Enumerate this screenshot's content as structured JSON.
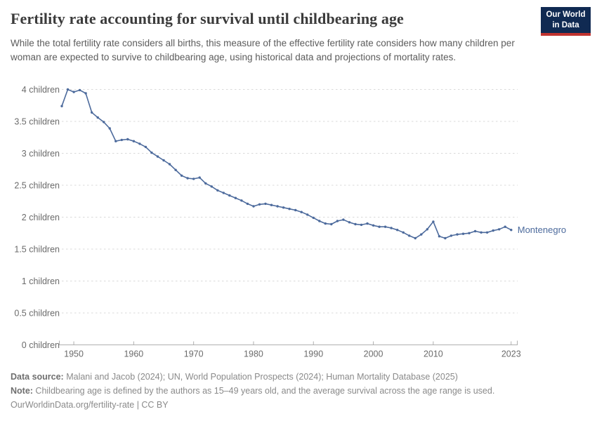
{
  "header": {
    "title": "Fertility rate accounting for survival until childbearing age",
    "subtitle": "While the total fertility rate considers all births, this measure of the effective fertility rate considers how many children per woman are expected to survive to childbearing age, using historical data and projections of mortality rates.",
    "logo": {
      "line1": "Our World",
      "line2": "in Data"
    }
  },
  "chart_data": {
    "type": "line",
    "title": "Fertility rate accounting for survival until childbearing age",
    "entity_label": "Montenegro",
    "grid": "horizontal-dashed",
    "legend_position": "end-of-line",
    "xlim": [
      1948,
      2024
    ],
    "ylim": [
      0,
      4
    ],
    "x_ticks": [
      {
        "year": 1950,
        "label": "1950"
      },
      {
        "year": 1960,
        "label": "1960"
      },
      {
        "year": 1970,
        "label": "1970"
      },
      {
        "year": 1980,
        "label": "1980"
      },
      {
        "year": 1990,
        "label": "1990"
      },
      {
        "year": 2000,
        "label": "2000"
      },
      {
        "year": 2010,
        "label": "2010"
      },
      {
        "year": 2023,
        "label": "2023"
      }
    ],
    "y_ticks": [
      {
        "value": 4,
        "label": "4 children"
      },
      {
        "value": 3.5,
        "label": "3.5 children"
      },
      {
        "value": 3,
        "label": "3 children"
      },
      {
        "value": 2.5,
        "label": "2.5 children"
      },
      {
        "value": 2,
        "label": "2 children"
      },
      {
        "value": 1.5,
        "label": "1.5 children"
      },
      {
        "value": 1,
        "label": "1 children"
      },
      {
        "value": 0.5,
        "label": "0.5 children"
      },
      {
        "value": 0,
        "label": "0 children"
      }
    ],
    "x": [
      1948,
      1949,
      1950,
      1951,
      1952,
      1953,
      1954,
      1955,
      1956,
      1957,
      1958,
      1959,
      1960,
      1961,
      1962,
      1963,
      1964,
      1965,
      1966,
      1967,
      1968,
      1969,
      1970,
      1971,
      1972,
      1973,
      1974,
      1975,
      1976,
      1977,
      1978,
      1979,
      1980,
      1981,
      1982,
      1983,
      1984,
      1985,
      1986,
      1987,
      1988,
      1989,
      1990,
      1991,
      1992,
      1993,
      1994,
      1995,
      1996,
      1997,
      1998,
      1999,
      2000,
      2001,
      2002,
      2003,
      2004,
      2005,
      2006,
      2007,
      2008,
      2009,
      2010,
      2011,
      2012,
      2013,
      2014,
      2015,
      2016,
      2017,
      2018,
      2019,
      2020,
      2021,
      2022,
      2023
    ],
    "series": [
      {
        "name": "Montenegro",
        "color": "#4c6a9c",
        "values": [
          3.74,
          4.0,
          3.96,
          3.99,
          3.94,
          3.64,
          3.56,
          3.49,
          3.39,
          3.19,
          3.21,
          3.22,
          3.19,
          3.15,
          3.1,
          3.01,
          2.95,
          2.89,
          2.83,
          2.74,
          2.65,
          2.61,
          2.6,
          2.62,
          2.53,
          2.48,
          2.42,
          2.38,
          2.34,
          2.3,
          2.26,
          2.21,
          2.17,
          2.2,
          2.21,
          2.19,
          2.17,
          2.15,
          2.13,
          2.11,
          2.08,
          2.04,
          1.99,
          1.94,
          1.9,
          1.89,
          1.94,
          1.96,
          1.92,
          1.89,
          1.88,
          1.9,
          1.87,
          1.85,
          1.85,
          1.83,
          1.8,
          1.76,
          1.71,
          1.67,
          1.73,
          1.81,
          1.93,
          1.7,
          1.67,
          1.71,
          1.73,
          1.74,
          1.75,
          1.78,
          1.76,
          1.76,
          1.79,
          1.81,
          1.85,
          1.8
        ]
      }
    ]
  },
  "footer": {
    "datasource_label": "Data source:",
    "datasource_text": " Malani and Jacob (2024); UN, World Population Prospects (2024); Human Mortality Database (2025)",
    "note_label": "Note:",
    "note_text": " Childbearing age is defined by the authors as 15–49 years old, and the average survival across the age range is used.",
    "license": "OurWorldinData.org/fertility-rate | CC BY"
  },
  "colors": {
    "series_blue": "#4c6a9c",
    "title_text": "#3b3b3b",
    "subtitle_text": "#5c5c5c",
    "axis_text": "#6b6b6b",
    "grid_line": "#d9d9d9",
    "axis_line": "#b0b0b0",
    "footer_text": "#8a8a8a",
    "logo_bg": "#102a52",
    "logo_red": "#c0332f"
  }
}
